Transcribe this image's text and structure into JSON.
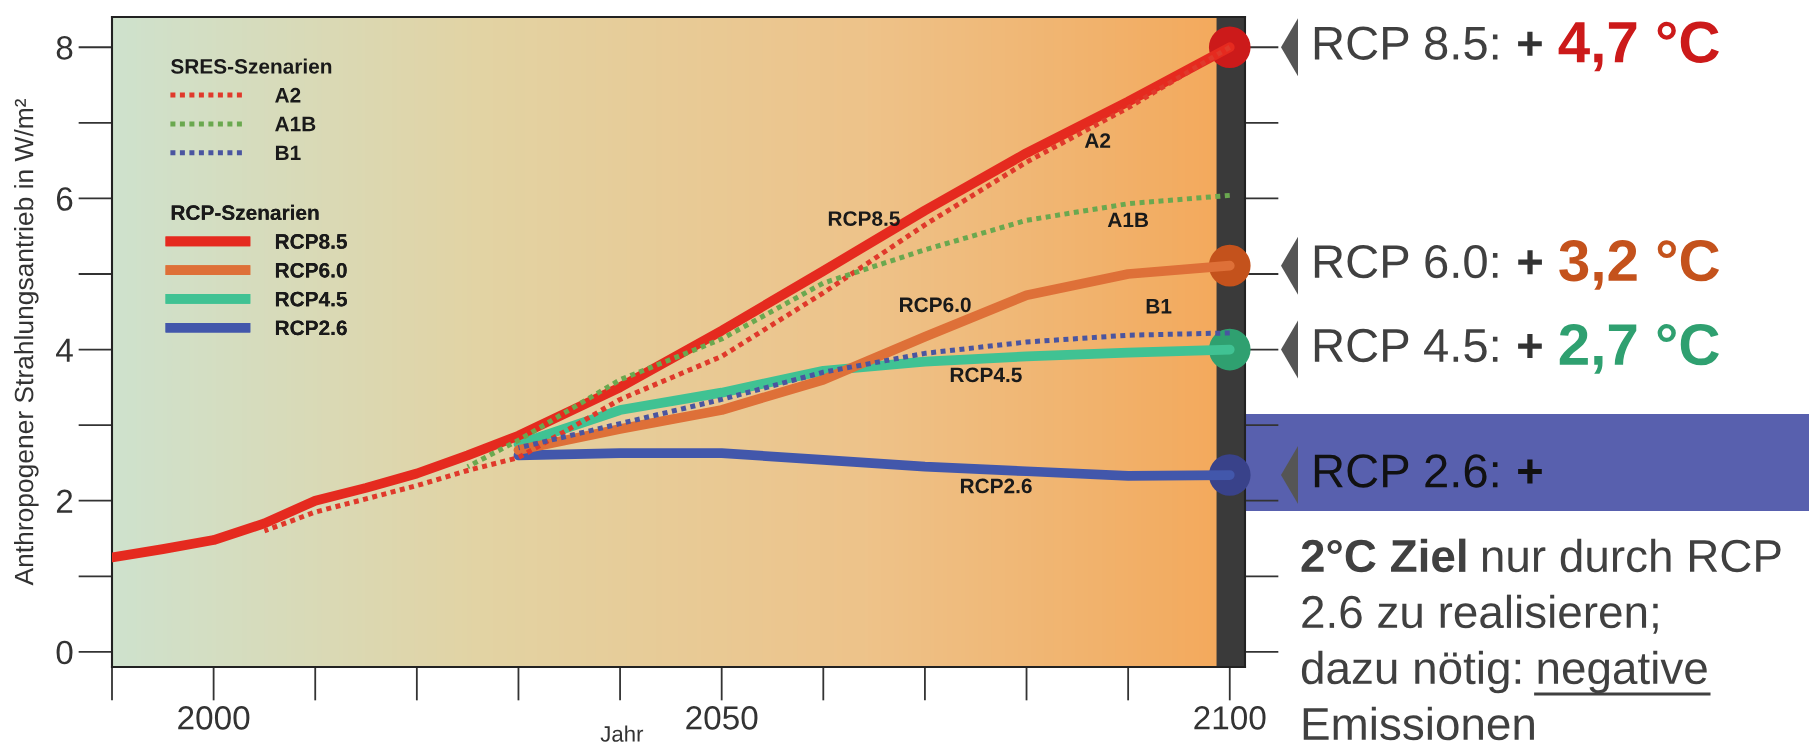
{
  "chart_data": {
    "type": "line",
    "xlabel": "Jahr",
    "ylabel": "Anthropogener Strahlungsantrieb in W/m²",
    "legend_title": [
      "SRES-Szenarien",
      "RCP-Szenarien"
    ],
    "legend": "top left",
    "grid": false,
    "xlim": [
      1990,
      2101.5
    ],
    "ylim": [
      -0.2,
      8.4
    ],
    "xticks": [
      2000,
      2050,
      2100
    ],
    "yticks": [
      0,
      2,
      4,
      6,
      8
    ],
    "bands": [
      {
        "axis": "x",
        "from": 2098.7,
        "to": 2101.5,
        "color": "#3a3a3a"
      }
    ],
    "series": [
      {
        "name": "A2",
        "color": "#e0392b",
        "line_style": "dotted",
        "x": [
          2005,
          2010,
          2020,
          2025,
          2030,
          2035,
          2040,
          2050,
          2060,
          2070,
          2080,
          2090,
          2100
        ],
        "values": [
          1.6,
          1.85,
          2.2,
          2.4,
          2.57,
          2.95,
          3.34,
          3.91,
          4.75,
          5.65,
          6.48,
          7.2,
          8.0
        ]
      },
      {
        "name": "A1B",
        "color": "#6aa84f",
        "line_style": "dotted",
        "x": [
          2025,
          2030,
          2040,
          2050,
          2060,
          2070,
          2080,
          2090,
          2100
        ],
        "values": [
          2.45,
          2.8,
          3.6,
          4.14,
          4.88,
          5.32,
          5.71,
          5.93,
          6.04
        ]
      },
      {
        "name": "B1",
        "color": "#4a55a0",
        "line_style": "dotted",
        "x": [
          2030,
          2040,
          2050,
          2060,
          2070,
          2080,
          2090,
          2100
        ],
        "values": [
          2.7,
          3.02,
          3.34,
          3.7,
          3.95,
          4.1,
          4.19,
          4.22
        ]
      },
      {
        "name": "RCP8.5",
        "color": "#e52a1f",
        "line_style": "solid",
        "x": [
          1990,
          1995,
          2000,
          2005,
          2010,
          2015,
          2020,
          2025,
          2030,
          2040,
          2050,
          2060,
          2070,
          2080,
          2090,
          2100
        ],
        "values": [
          1.25,
          1.36,
          1.48,
          1.7,
          2.0,
          2.17,
          2.36,
          2.6,
          2.86,
          3.5,
          4.25,
          5.04,
          5.84,
          6.6,
          7.28,
          8.0
        ]
      },
      {
        "name": "RCP6.0",
        "color": "#de7038",
        "line_style": "solid",
        "x": [
          2030,
          2040,
          2050,
          2060,
          2070,
          2080,
          2090,
          2100
        ],
        "values": [
          2.67,
          2.95,
          3.2,
          3.6,
          4.17,
          4.72,
          5.0,
          5.11
        ]
      },
      {
        "name": "RCP4.5",
        "color": "#40c293",
        "line_style": "solid",
        "x": [
          2030,
          2040,
          2050,
          2060,
          2070,
          2080,
          2090,
          2100
        ],
        "values": [
          2.75,
          3.2,
          3.43,
          3.72,
          3.84,
          3.91,
          3.96,
          4.0
        ]
      },
      {
        "name": "RCP2.6",
        "color": "#4257ab",
        "line_style": "solid",
        "x": [
          2030,
          2040,
          2050,
          2060,
          2070,
          2080,
          2090,
          2100
        ],
        "values": [
          2.6,
          2.63,
          2.63,
          2.54,
          2.45,
          2.39,
          2.33,
          2.34
        ]
      },
      {
        "type": "scatter",
        "marker": "circle",
        "x": [
          2100,
          2100,
          2100,
          2100
        ],
        "values": [
          8.0,
          5.11,
          4.0,
          2.34
        ],
        "colors": [
          "#cc1a1a",
          "#c4521c",
          "#2fa070",
          "#39428a"
        ]
      }
    ],
    "annotations": [
      {
        "text": "RCP8.5",
        "x": 2064,
        "y": 5.36
      },
      {
        "text": "A2",
        "x": 2087,
        "y": 6.98
      },
      {
        "text": "A1B",
        "x": 2090,
        "y": 5.93
      },
      {
        "text": "RCP6.0",
        "x": 2071,
        "y": 4.22
      },
      {
        "text": "B1",
        "x": 2093,
        "y": 4.2
      },
      {
        "text": "RCP4.5",
        "x": 2076,
        "y": 3.88
      },
      {
        "text": "RCP2.6",
        "x": 2077,
        "y": 2.41
      },
      {
        "text": "RCP 8.5: + 4,7 °C",
        "x": 2100,
        "y": 8.0
      },
      {
        "text": "RCP 6.0: + 3,2 °C",
        "x": 2100,
        "y": 5.11
      },
      {
        "text": "RCP 4.5: + 2,7 °C",
        "x": 2100,
        "y": 4.0
      },
      {
        "text": "RCP 2.6: +",
        "x": 2100,
        "y": 2.34
      },
      "2°C Ziel",
      "nur durch RCP\n2.6 zu realisieren;\ndazu nötig:",
      "negative",
      "\nEmissionen"
    ]
  }
}
